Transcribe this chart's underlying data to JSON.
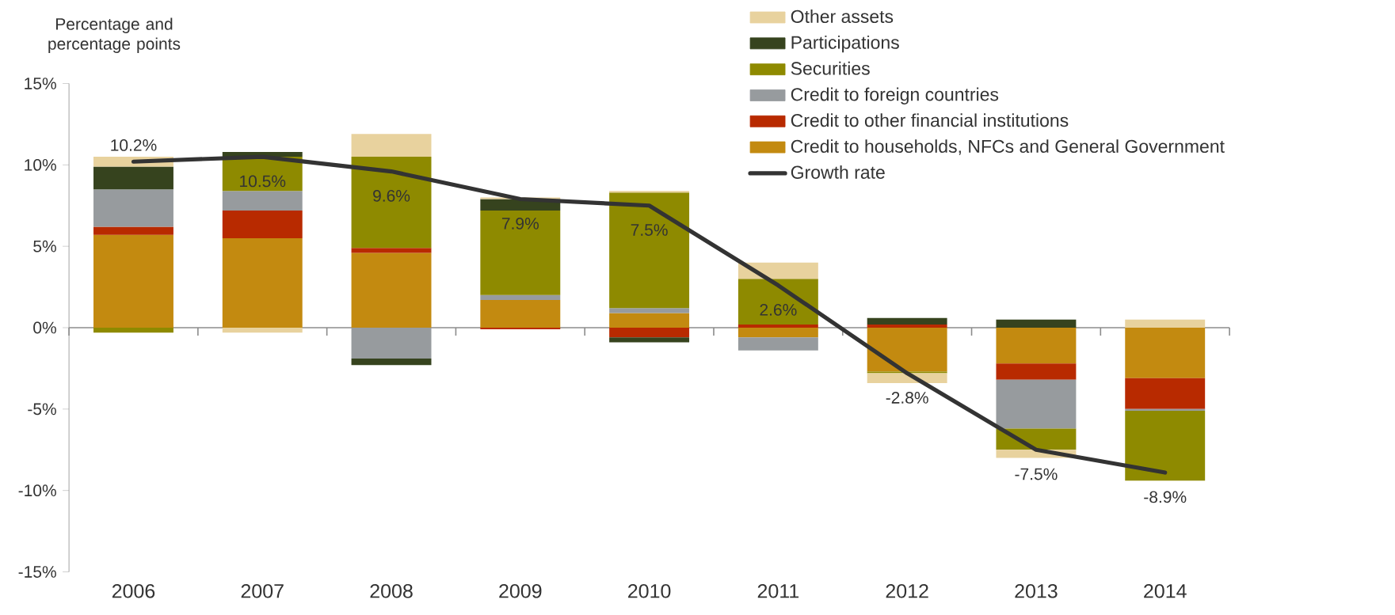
{
  "chart_data": {
    "type": "bar",
    "stacked": true,
    "ylabel": "Percentage and percentage points",
    "categories": [
      "2006",
      "2007",
      "2008",
      "2009",
      "2010",
      "2011",
      "2012",
      "2013",
      "2014"
    ],
    "series": [
      {
        "name": "Credit to households, NFCs and General Government",
        "color": "#c38a10",
        "values": [
          5.7,
          5.5,
          4.6,
          1.7,
          0.9,
          -0.6,
          -2.7,
          -2.2,
          -3.1
        ]
      },
      {
        "name": "Credit to other financial institutions",
        "color": "#b82a00",
        "values": [
          0.5,
          1.7,
          0.3,
          -0.1,
          -0.6,
          0.2,
          0.2,
          -1.0,
          -1.9
        ]
      },
      {
        "name": "Credit to foreign countries",
        "color": "#979b9e",
        "values": [
          2.3,
          1.2,
          -1.9,
          0.3,
          0.3,
          -0.8,
          0,
          -3.0,
          -0.1
        ]
      },
      {
        "name": "Securities",
        "color": "#8e8a00",
        "values": [
          -0.3,
          2.1,
          5.6,
          5.2,
          7.1,
          2.8,
          -0.1,
          -1.3,
          -4.3
        ]
      },
      {
        "name": "Participations",
        "color": "#36431e",
        "values": [
          1.4,
          0.3,
          -0.4,
          0.7,
          -0.3,
          0,
          0.4,
          0.5,
          0
        ]
      },
      {
        "name": "Other assets",
        "color": "#e8d29e",
        "values": [
          0.6,
          -0.3,
          1.4,
          0.1,
          0.1,
          1.0,
          -0.6,
          -0.5,
          0.5
        ]
      },
      {
        "name": "Growth rate",
        "type": "line",
        "color": "#333333",
        "values": [
          10.2,
          10.5,
          9.6,
          7.9,
          7.5,
          2.6,
          -2.8,
          -7.5,
          -8.9
        ],
        "data_labels": true,
        "value_labels": [
          "10.2%",
          "10.5%",
          "9.6%",
          "7.9%",
          "7.5%",
          "2.6%",
          "-2.8%",
          "-7.5%",
          "-8.9%"
        ]
      }
    ],
    "ylim": [
      -15,
      15
    ],
    "yticks": [
      {
        "value": -15,
        "label": "-15%"
      },
      {
        "value": -10,
        "label": "-10%"
      },
      {
        "value": -5,
        "label": "-5%"
      },
      {
        "value": 0,
        "label": "0%"
      },
      {
        "value": 5,
        "label": "5%"
      },
      {
        "value": 10,
        "label": "10%"
      },
      {
        "value": 15,
        "label": "15%"
      }
    ],
    "ref_lines": [
      {
        "axis": "y",
        "value": 0,
        "color": "#8c8c8c"
      }
    ],
    "legend": "top right",
    "grid": false
  }
}
